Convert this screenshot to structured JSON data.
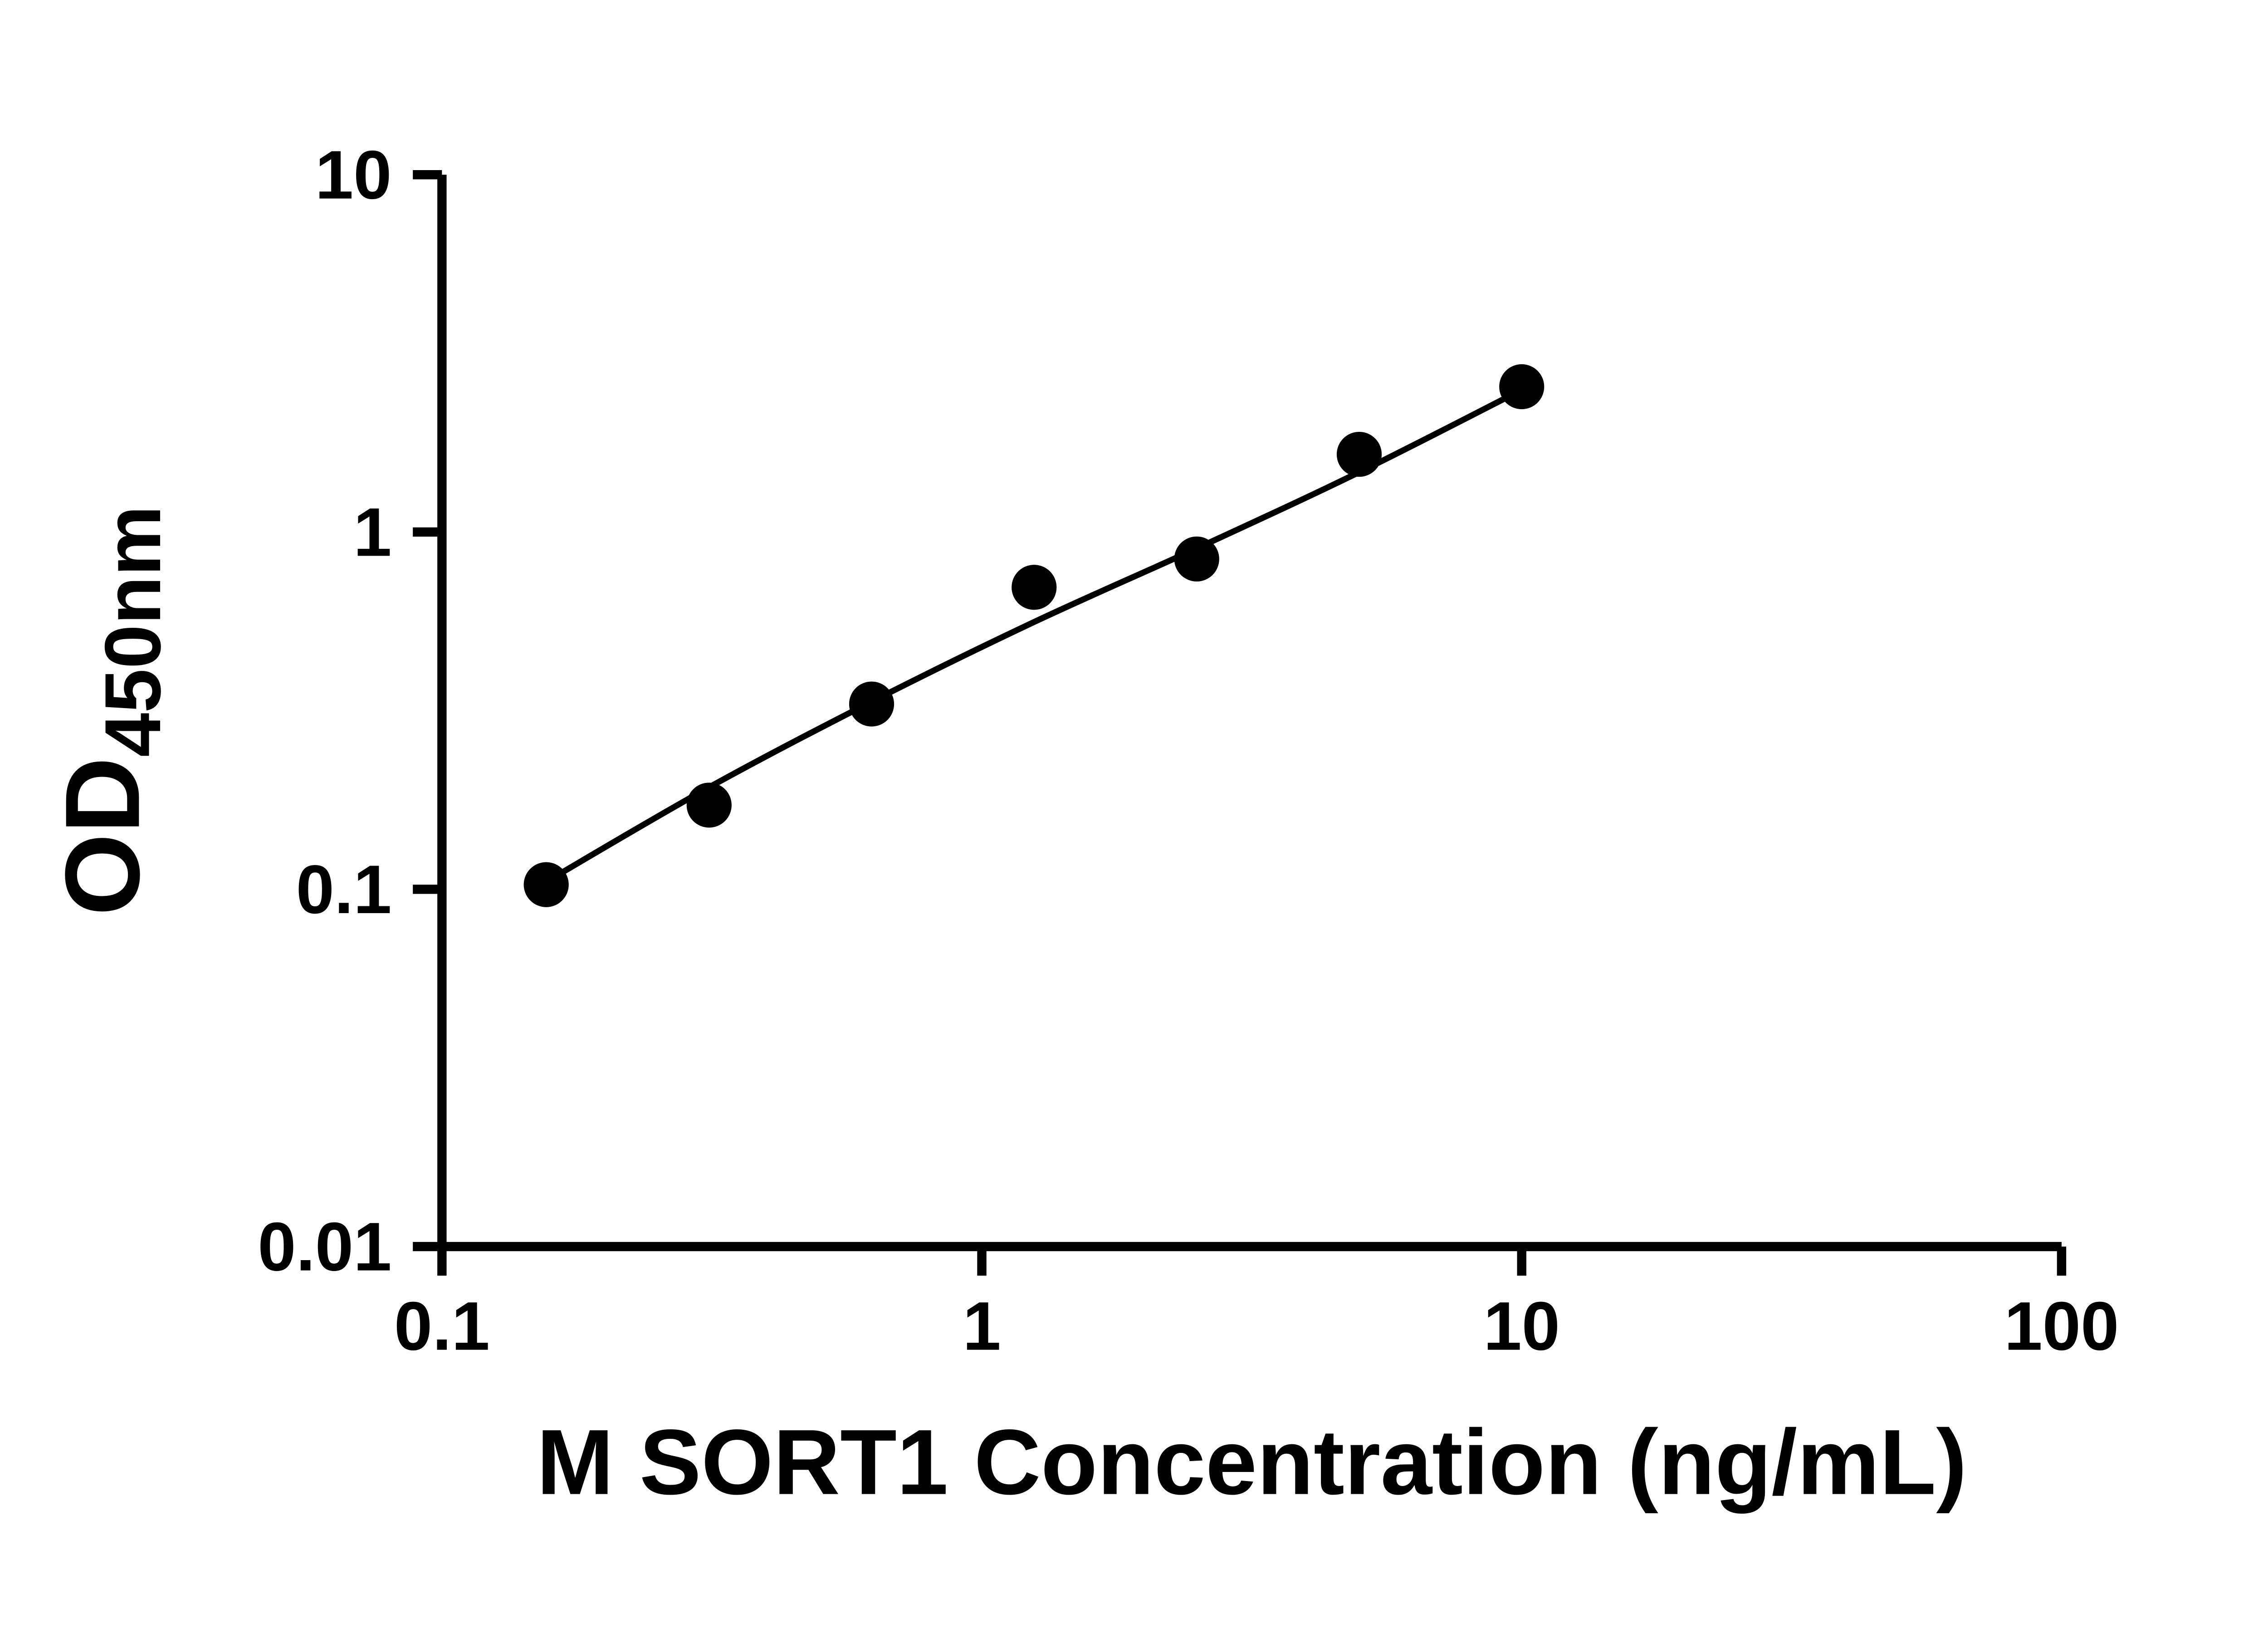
{
  "figure": {
    "background_color": "#ffffff",
    "axis_color": "#000000"
  },
  "chart_data": {
    "type": "scatter",
    "title": "",
    "xlabel": "M SORT1 Concentration (ng/mL)",
    "ylabel_main": "OD",
    "ylabel_subscript": "450nm",
    "x_scale": "log10",
    "y_scale": "log10",
    "xlim": [
      0.1,
      100
    ],
    "ylim": [
      0.01,
      10
    ],
    "grid": false,
    "legend": "none",
    "x_tick_values": [
      0.1,
      1,
      10,
      100
    ],
    "x_tick_labels": [
      "0.1",
      "1",
      "10",
      "100"
    ],
    "y_tick_values": [
      10,
      1,
      0.1,
      0.01
    ],
    "y_tick_labels": [
      "10",
      "1",
      "0.1",
      "0.01"
    ],
    "series": [
      {
        "marker": "filled-circle",
        "color": "#000000",
        "x": [
          0.156,
          0.3125,
          0.625,
          1.25,
          2.5,
          5,
          10
        ],
        "y": [
          0.103,
          0.172,
          0.33,
          0.7,
          0.84,
          1.65,
          2.55
        ]
      }
    ],
    "fit_line": {
      "color": "#000000",
      "x": [
        0.156,
        0.3125,
        0.625,
        1.25,
        2.5,
        5,
        10
      ],
      "y": [
        0.105,
        0.193,
        0.335,
        0.56,
        0.9,
        1.47,
        2.5
      ]
    }
  }
}
